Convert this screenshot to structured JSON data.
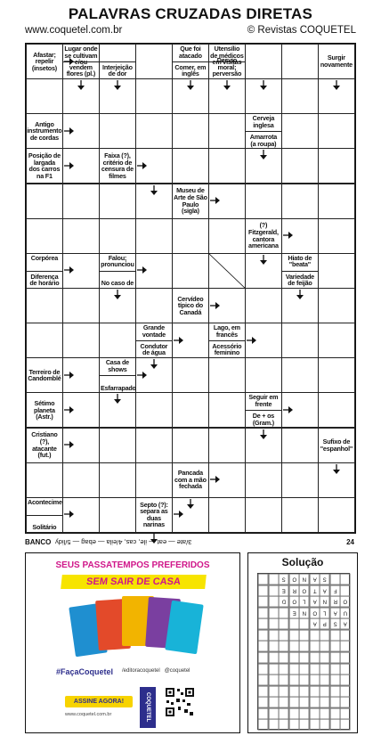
{
  "header": {
    "title": "PALAVRAS CRUZADAS DIRETAS",
    "site": "www.coquetel.com.br",
    "brand": "© Revistas COQUETEL"
  },
  "clues": [
    {
      "c": 0,
      "r": 0,
      "t": "Afastar; repelir (insetos)",
      "pos": "full"
    },
    {
      "c": 1,
      "r": 0,
      "t": "Lugar onde se cultivam e/ou",
      "pos": "top",
      "span": 2
    },
    {
      "c": 1,
      "r": 0,
      "t": "vendem flores (pl.)",
      "pos": "bottom"
    },
    {
      "c": 2,
      "r": 0,
      "t": "Interjeição de dor",
      "pos": "bottom"
    },
    {
      "c": 4,
      "r": 0,
      "t": "Que foi atacado",
      "pos": "top"
    },
    {
      "c": 4,
      "r": 0,
      "t": "Comer, em inglês",
      "pos": "bottom"
    },
    {
      "c": 5,
      "r": 0,
      "t": "Utensílio de médicos em visitas",
      "pos": "top",
      "span": 2
    },
    {
      "c": 5,
      "r": 0,
      "t": "Desvio moral; perversão",
      "pos": "bottom",
      "span": 2
    },
    {
      "c": 8,
      "r": 0,
      "t": "Surgir novamente",
      "pos": "full"
    },
    {
      "c": 0,
      "r": 2,
      "t": "Antigo instrumento de cordas",
      "pos": "full"
    },
    {
      "c": 6,
      "r": 2,
      "t": "Cerveja inglesa",
      "pos": "top"
    },
    {
      "c": 6,
      "r": 2,
      "t": "Amarrota (a roupa)",
      "pos": "bottom"
    },
    {
      "c": 0,
      "r": 3,
      "t": "Posição de largada dos carros na F1",
      "pos": "full"
    },
    {
      "c": 2,
      "r": 3,
      "t": "Faixa (?), critério de censura de filmes",
      "pos": "full"
    },
    {
      "c": 4,
      "r": 4,
      "t": "Museu de Arte de São Paulo (sigla)",
      "pos": "full"
    },
    {
      "c": 6,
      "r": 5,
      "t": "(?) Fitzgerald, cantora americana",
      "pos": "full"
    },
    {
      "c": 0,
      "r": 6,
      "t": "Corpórea",
      "pos": "top"
    },
    {
      "c": 0,
      "r": 6,
      "t": "Diferença de horário",
      "pos": "bottom"
    },
    {
      "c": 2,
      "r": 6,
      "t": "Falou; pronunciou",
      "pos": "top"
    },
    {
      "c": 2,
      "r": 6,
      "t": "No caso de",
      "pos": "bottom"
    },
    {
      "c": 7,
      "r": 6,
      "t": "Hiato de \"beata\"",
      "pos": "top"
    },
    {
      "c": 7,
      "r": 6,
      "t": "Variedade de feijão",
      "pos": "bottom"
    },
    {
      "c": 4,
      "r": 7,
      "t": "Cervídeo típico do Canadá",
      "pos": "full"
    },
    {
      "c": 3,
      "r": 8,
      "t": "Grande vontade",
      "pos": "top"
    },
    {
      "c": 3,
      "r": 8,
      "t": "Condutor de água",
      "pos": "bottom"
    },
    {
      "c": 5,
      "r": 8,
      "t": "Lago, em francês",
      "pos": "top"
    },
    {
      "c": 5,
      "r": 8,
      "t": "Acessório feminino",
      "pos": "bottom"
    },
    {
      "c": 0,
      "r": 9,
      "t": "Terreiro de Candomblé",
      "pos": "full"
    },
    {
      "c": 2,
      "r": 9,
      "t": "Casa de shows",
      "pos": "top"
    },
    {
      "c": 2,
      "r": 9,
      "t": "Esfarrapado",
      "pos": "bottom"
    },
    {
      "c": 0,
      "r": 10,
      "t": "Sétimo planeta (Astr.)",
      "pos": "full"
    },
    {
      "c": 6,
      "r": 10,
      "t": "Seguir em frente",
      "pos": "top"
    },
    {
      "c": 6,
      "r": 10,
      "t": "De + os (Gram.)",
      "pos": "bottom"
    },
    {
      "c": 0,
      "r": 11,
      "t": "Cristiano (?), atacante (fut.)",
      "pos": "full"
    },
    {
      "c": 8,
      "r": 11,
      "t": "Sufixo de \"espanhol\"",
      "pos": "full"
    },
    {
      "c": 4,
      "r": 12,
      "t": "Pancada com a mão fechada",
      "pos": "full"
    },
    {
      "c": 0,
      "r": 13,
      "t": "Acontecimento",
      "pos": "top"
    },
    {
      "c": 0,
      "r": 13,
      "t": "Solitário",
      "pos": "bottom"
    },
    {
      "c": 3,
      "r": 13,
      "t": "Septo (?): separa as duas narinas",
      "pos": "full"
    }
  ],
  "banco": {
    "label": "BANCO",
    "words": "3/ate — eat — ile, cas, 4/eila — ebag — 5/lidy",
    "page": "24"
  },
  "ad": {
    "headline": "SEUS PASSATEMPOS PREFERIDOS",
    "banner": "SEM SAIR DE CASA",
    "hashtag": "#FaçaCoquetel",
    "social1": "/editoracoquetel",
    "social2": "@coquetel",
    "button": "ASSINE AGORA!",
    "url": "www.coquetel.com.br",
    "logo": "COQUETEL",
    "colors": {
      "pink": "#d0178a",
      "yellow": "#f7e400",
      "navy": "#2d2e8c"
    }
  },
  "solution": {
    "title": "Solução",
    "rows": [
      [
        "",
        "",
        "S",
        "O",
        "N",
        "A",
        "S",
        "",
        ""
      ],
      [
        "",
        "",
        "E",
        "R",
        "O",
        "T",
        "A",
        "F",
        ""
      ],
      [
        "",
        "",
        "D",
        "O",
        "L",
        "A",
        "N",
        "R",
        "O"
      ],
      [
        "",
        "",
        "",
        "E",
        "N",
        "O",
        "L",
        "A",
        "U"
      ],
      [
        "",
        "",
        "",
        "",
        "",
        "A",
        "P",
        "S",
        "A"
      ],
      [
        "",
        "",
        "",
        "",
        "",
        "",
        "",
        "",
        ""
      ],
      [
        "",
        "",
        "",
        "",
        "",
        "",
        "",
        "",
        ""
      ],
      [
        "",
        "",
        "",
        "",
        "",
        "",
        "",
        "",
        ""
      ],
      [
        "",
        "",
        "",
        "",
        "",
        "",
        "",
        "",
        ""
      ],
      [
        "",
        "",
        "",
        "",
        "",
        "",
        "",
        "",
        ""
      ],
      [
        "",
        "",
        "",
        "",
        "",
        "",
        "",
        "",
        ""
      ],
      [
        "",
        "",
        "",
        "",
        "",
        "",
        "",
        "",
        ""
      ],
      [
        "",
        "",
        "",
        "",
        "",
        "",
        "",
        "",
        ""
      ],
      [
        "",
        "",
        "",
        "",
        "",
        "",
        "",
        "",
        ""
      ]
    ]
  }
}
